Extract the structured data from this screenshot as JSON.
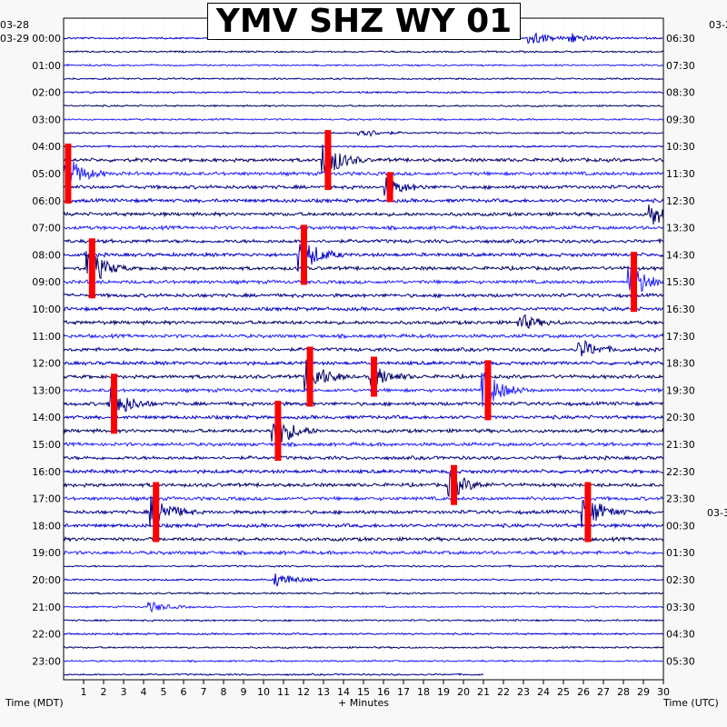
{
  "chart_data": {
    "type": "helicorder",
    "title": "YMV SHZ WY 01",
    "xlabel": "+ Minutes",
    "left_axis_label": "Time (MDT)",
    "right_axis_label": "Time (UTC)",
    "x_ticks": [
      1,
      2,
      3,
      4,
      5,
      6,
      7,
      8,
      9,
      10,
      11,
      12,
      13,
      14,
      15,
      16,
      17,
      18,
      19,
      20,
      21,
      22,
      23,
      24,
      25,
      26,
      27,
      28,
      29,
      30
    ],
    "xlim": [
      0,
      30
    ],
    "left_date_labels": [
      "03-28",
      "03-29"
    ],
    "right_date_labels": [
      "03-2",
      "03-3"
    ],
    "left_hour_labels": [
      "00:00",
      "01:00",
      "02:00",
      "03:00",
      "04:00",
      "05:00",
      "06:00",
      "07:00",
      "08:00",
      "09:00",
      "10:00",
      "11:00",
      "12:00",
      "13:00",
      "14:00",
      "15:00",
      "16:00",
      "17:00",
      "18:00",
      "19:00",
      "20:00",
      "21:00",
      "22:00",
      "23:00"
    ],
    "right_hour_labels": [
      "06:30",
      "07:30",
      "08:30",
      "09:30",
      "10:30",
      "11:30",
      "12:30",
      "13:30",
      "14:30",
      "15:30",
      "16:30",
      "17:30",
      "18:30",
      "19:30",
      "20:30",
      "21:30",
      "22:30",
      "23:30",
      "00:30",
      "01:30",
      "02:30",
      "03:30",
      "04:30",
      "05:30"
    ],
    "traces_per_hour": 2,
    "trace_colors": [
      "#0000cc",
      "#000066",
      "#2020ff",
      "#00008b"
    ],
    "clip_color": "#ff0000",
    "last_trace_end_minute": 21,
    "events": [
      {
        "hour": 5.0,
        "minute": 0.2,
        "amp": 3,
        "clipped": true
      },
      {
        "hour": 8.5,
        "minute": 1.4,
        "amp": 3,
        "clipped": true
      },
      {
        "hour": 4.5,
        "minute": 13.2,
        "amp": 3,
        "clipped": true
      },
      {
        "hour": 0.0,
        "minute": 23.5,
        "amp": 1.2,
        "clipped": false
      },
      {
        "hour": 0.0,
        "minute": 25.5,
        "amp": 0.8,
        "clipped": false
      },
      {
        "hour": 3.5,
        "minute": 15.0,
        "amp": 0.8,
        "clipped": false
      },
      {
        "hour": 5.5,
        "minute": 16.3,
        "amp": 1.5,
        "clipped": true
      },
      {
        "hour": 8.0,
        "minute": 12.0,
        "amp": 3,
        "clipped": true
      },
      {
        "hour": 12.5,
        "minute": 12.3,
        "amp": 3,
        "clipped": true
      },
      {
        "hour": 12.5,
        "minute": 15.5,
        "amp": 2,
        "clipped": true
      },
      {
        "hour": 13.0,
        "minute": 21.2,
        "amp": 3,
        "clipped": true
      },
      {
        "hour": 13.5,
        "minute": 2.5,
        "amp": 3,
        "clipped": true
      },
      {
        "hour": 14.5,
        "minute": 10.7,
        "amp": 3,
        "clipped": true
      },
      {
        "hour": 16.5,
        "minute": 19.5,
        "amp": 2,
        "clipped": true
      },
      {
        "hour": 17.5,
        "minute": 4.6,
        "amp": 3,
        "clipped": true
      },
      {
        "hour": 17.5,
        "minute": 26.2,
        "amp": 3,
        "clipped": true
      },
      {
        "hour": 20.0,
        "minute": 10.8,
        "amp": 1.2,
        "clipped": false
      },
      {
        "hour": 21.0,
        "minute": 4.5,
        "amp": 0.8,
        "clipped": false
      },
      {
        "hour": 10.5,
        "minute": 23.0,
        "amp": 1.2,
        "clipped": false
      },
      {
        "hour": 11.5,
        "minute": 26.0,
        "amp": 1.5,
        "clipped": false
      },
      {
        "hour": 9.0,
        "minute": 28.5,
        "amp": 3,
        "clipped": true
      },
      {
        "hour": 6.5,
        "minute": 29.5,
        "amp": 2,
        "clipped": false
      }
    ]
  }
}
